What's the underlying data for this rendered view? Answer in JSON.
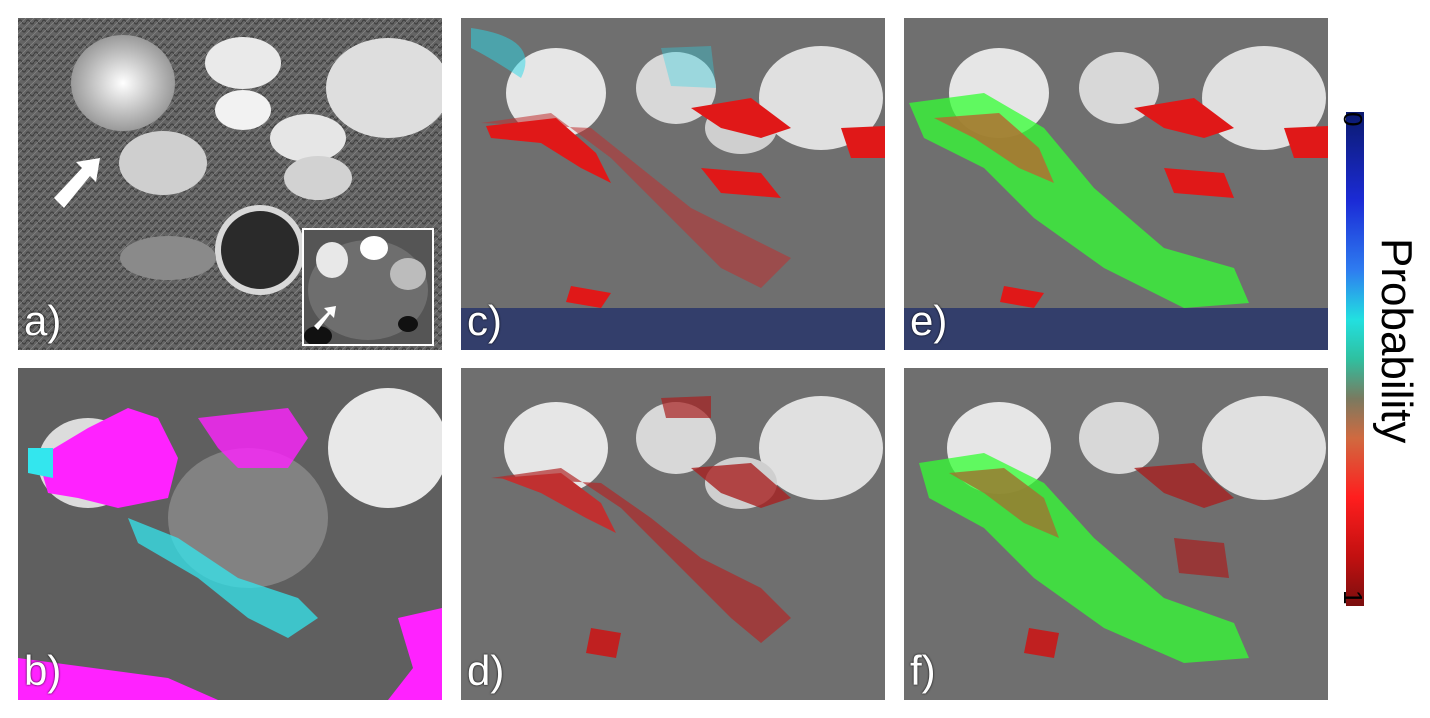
{
  "panels": {
    "a": {
      "label": "a)"
    },
    "b": {
      "label": "b)"
    },
    "c": {
      "label": "c)"
    },
    "d": {
      "label": "d)"
    },
    "e": {
      "label": "e)"
    },
    "f": {
      "label": "f)"
    }
  },
  "colorbar": {
    "title": "Probability",
    "min_label": "0",
    "max_label": "1",
    "colors": [
      "#0b1a6e",
      "#1b2bd6",
      "#22e0e0",
      "#7a7a60",
      "#ff1e1e",
      "#7a0e0e"
    ]
  },
  "overlay_colors": {
    "probability_high": "#e01818",
    "probability_low": "#2ad8e8",
    "segmentation_green": "#33ff33",
    "label_magenta": "#ff22ff",
    "label_cyan": "#33e6ee"
  }
}
